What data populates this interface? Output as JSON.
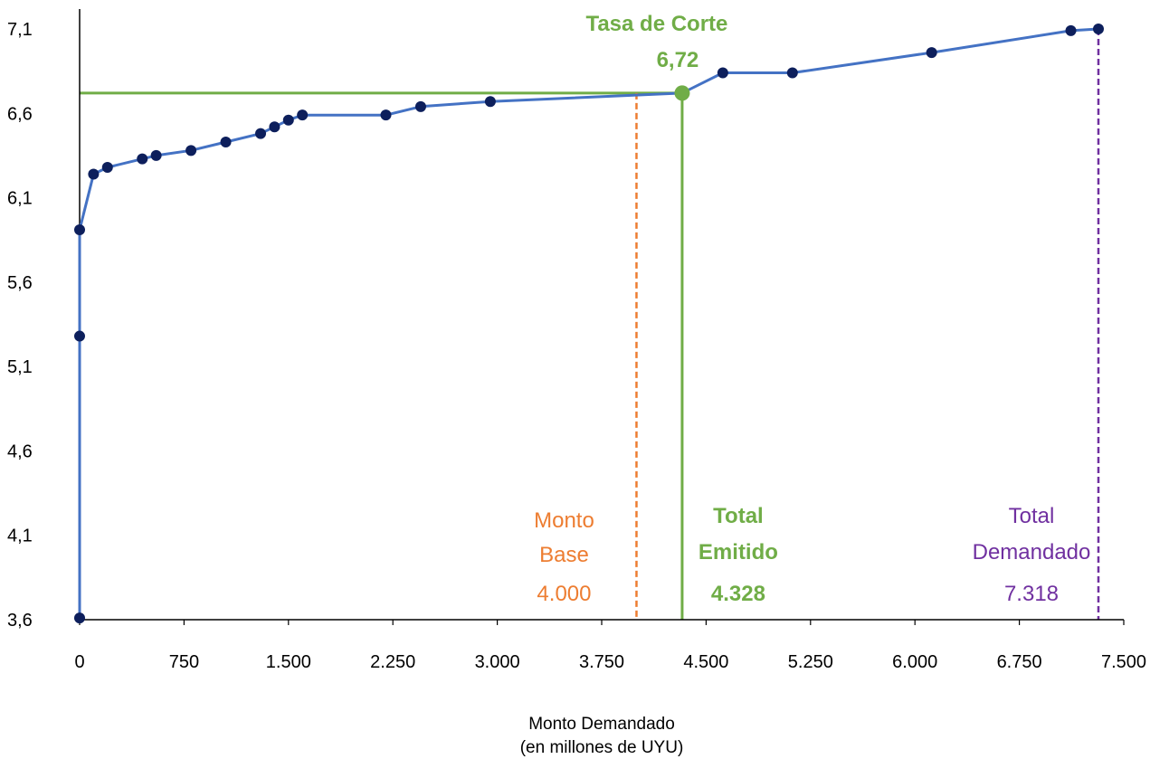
{
  "chart_data": {
    "type": "line",
    "xlabel": [
      "Monto Demandado",
      "(en millones de UYU)"
    ],
    "ylabel": "",
    "xlim": [
      0,
      7500
    ],
    "ylim": [
      3.6,
      7.1
    ],
    "x_ticks": [
      "0",
      "750",
      "1.500",
      "2.250",
      "3.000",
      "3.750",
      "4.500",
      "5.250",
      "6.000",
      "6.750",
      "7.500"
    ],
    "y_ticks": [
      "3,6",
      "4,1",
      "4,6",
      "5,1",
      "5,6",
      "6,1",
      "6,6",
      "7,1"
    ],
    "grid": false,
    "series": [
      {
        "color": "#4472c4",
        "marker_color": "#0d1f5c",
        "points": [
          [
            0,
            3.61
          ],
          [
            0,
            5.28
          ],
          [
            0,
            5.91
          ],
          [
            100,
            6.24
          ],
          [
            200,
            6.28
          ],
          [
            450,
            6.33
          ],
          [
            550,
            6.35
          ],
          [
            800,
            6.38
          ],
          [
            1050,
            6.43
          ],
          [
            1300,
            6.48
          ],
          [
            1400,
            6.52
          ],
          [
            1500,
            6.56
          ],
          [
            1600,
            6.59
          ],
          [
            2200,
            6.59
          ],
          [
            2450,
            6.64
          ],
          [
            2950,
            6.67
          ],
          [
            4328,
            6.72
          ],
          [
            4620,
            6.84
          ],
          [
            5120,
            6.84
          ],
          [
            6120,
            6.96
          ],
          [
            7120,
            7.09
          ],
          [
            7318,
            7.1
          ]
        ]
      }
    ],
    "annotations": {
      "cutoff": {
        "title": "Tasa de Corte",
        "value_label": "6,72",
        "rate": 6.72,
        "x": 4328,
        "color": "#70ad47"
      },
      "base": {
        "label1": "Monto",
        "label2": "Base",
        "value_label": "4.000",
        "x": 4000,
        "color": "#ed7d31"
      },
      "emitido": {
        "label1": "Total",
        "label2": "Emitido",
        "value_label": "4.328",
        "x": 4328,
        "color": "#70ad47"
      },
      "demandado": {
        "label1": "Total",
        "label2": "Demandado",
        "value_label": "7.318",
        "x": 7318,
        "color": "#7030a0"
      }
    }
  }
}
